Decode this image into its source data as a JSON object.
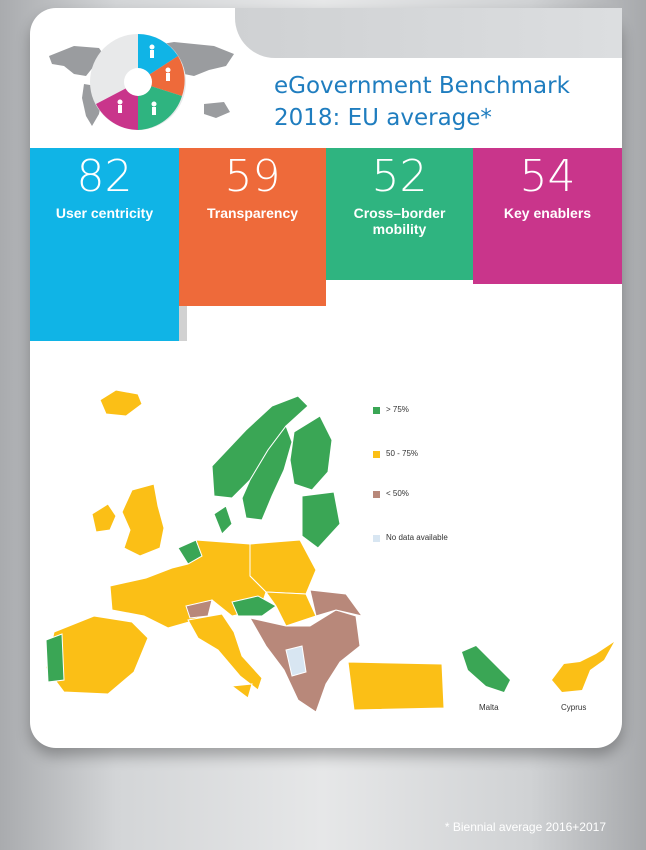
{
  "header": {
    "title_line1": "eGovernment Benchmark",
    "title_line2": "2018: EU average*"
  },
  "indicators": [
    {
      "value": "82",
      "label": "User centricity",
      "color": "#10b4e6"
    },
    {
      "value": "59",
      "label": "Transparency",
      "color": "#ee6a3a"
    },
    {
      "value": "52",
      "label": "Cross–border mobility",
      "color": "#2fb480"
    },
    {
      "value": "54",
      "label": "Key enablers",
      "color": "#c9358b"
    }
  ],
  "legend": [
    {
      "label": "> 75%",
      "color": "#3aa655"
    },
    {
      "label": "50 - 75%",
      "color": "#fbbf16"
    },
    {
      "label": "< 50%",
      "color": "#b8887a"
    },
    {
      "label": "No data available",
      "color": "#d8e6f2"
    }
  ],
  "islands": {
    "malta": "Malta",
    "cyprus": "Cyprus"
  },
  "footnote": "* Biennial average 2016+2017"
}
